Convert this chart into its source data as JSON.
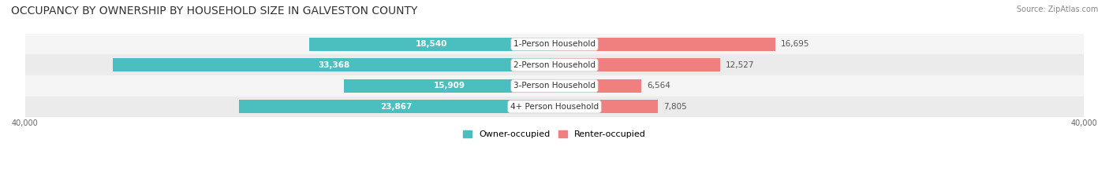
{
  "title": "OCCUPANCY BY OWNERSHIP BY HOUSEHOLD SIZE IN GALVESTON COUNTY",
  "source": "Source: ZipAtlas.com",
  "categories": [
    "1-Person Household",
    "2-Person Household",
    "3-Person Household",
    "4+ Person Household"
  ],
  "owner_values": [
    18540,
    33368,
    15909,
    23867
  ],
  "renter_values": [
    16695,
    12527,
    6564,
    7805
  ],
  "max_scale": 40000,
  "owner_color": "#4BBFBF",
  "renter_color": "#F08080",
  "label_bg_color": "#FFFFFF",
  "bar_bg_color": "#F0F0F0",
  "owner_label": "Owner-occupied",
  "renter_label": "Renter-occupied",
  "title_fontsize": 10,
  "source_fontsize": 7,
  "label_fontsize": 7.5,
  "axis_label_fontsize": 7,
  "legend_fontsize": 8,
  "background_color": "#FFFFFF",
  "row_bg_colors": [
    "#F5F5F5",
    "#EBEBEB"
  ]
}
